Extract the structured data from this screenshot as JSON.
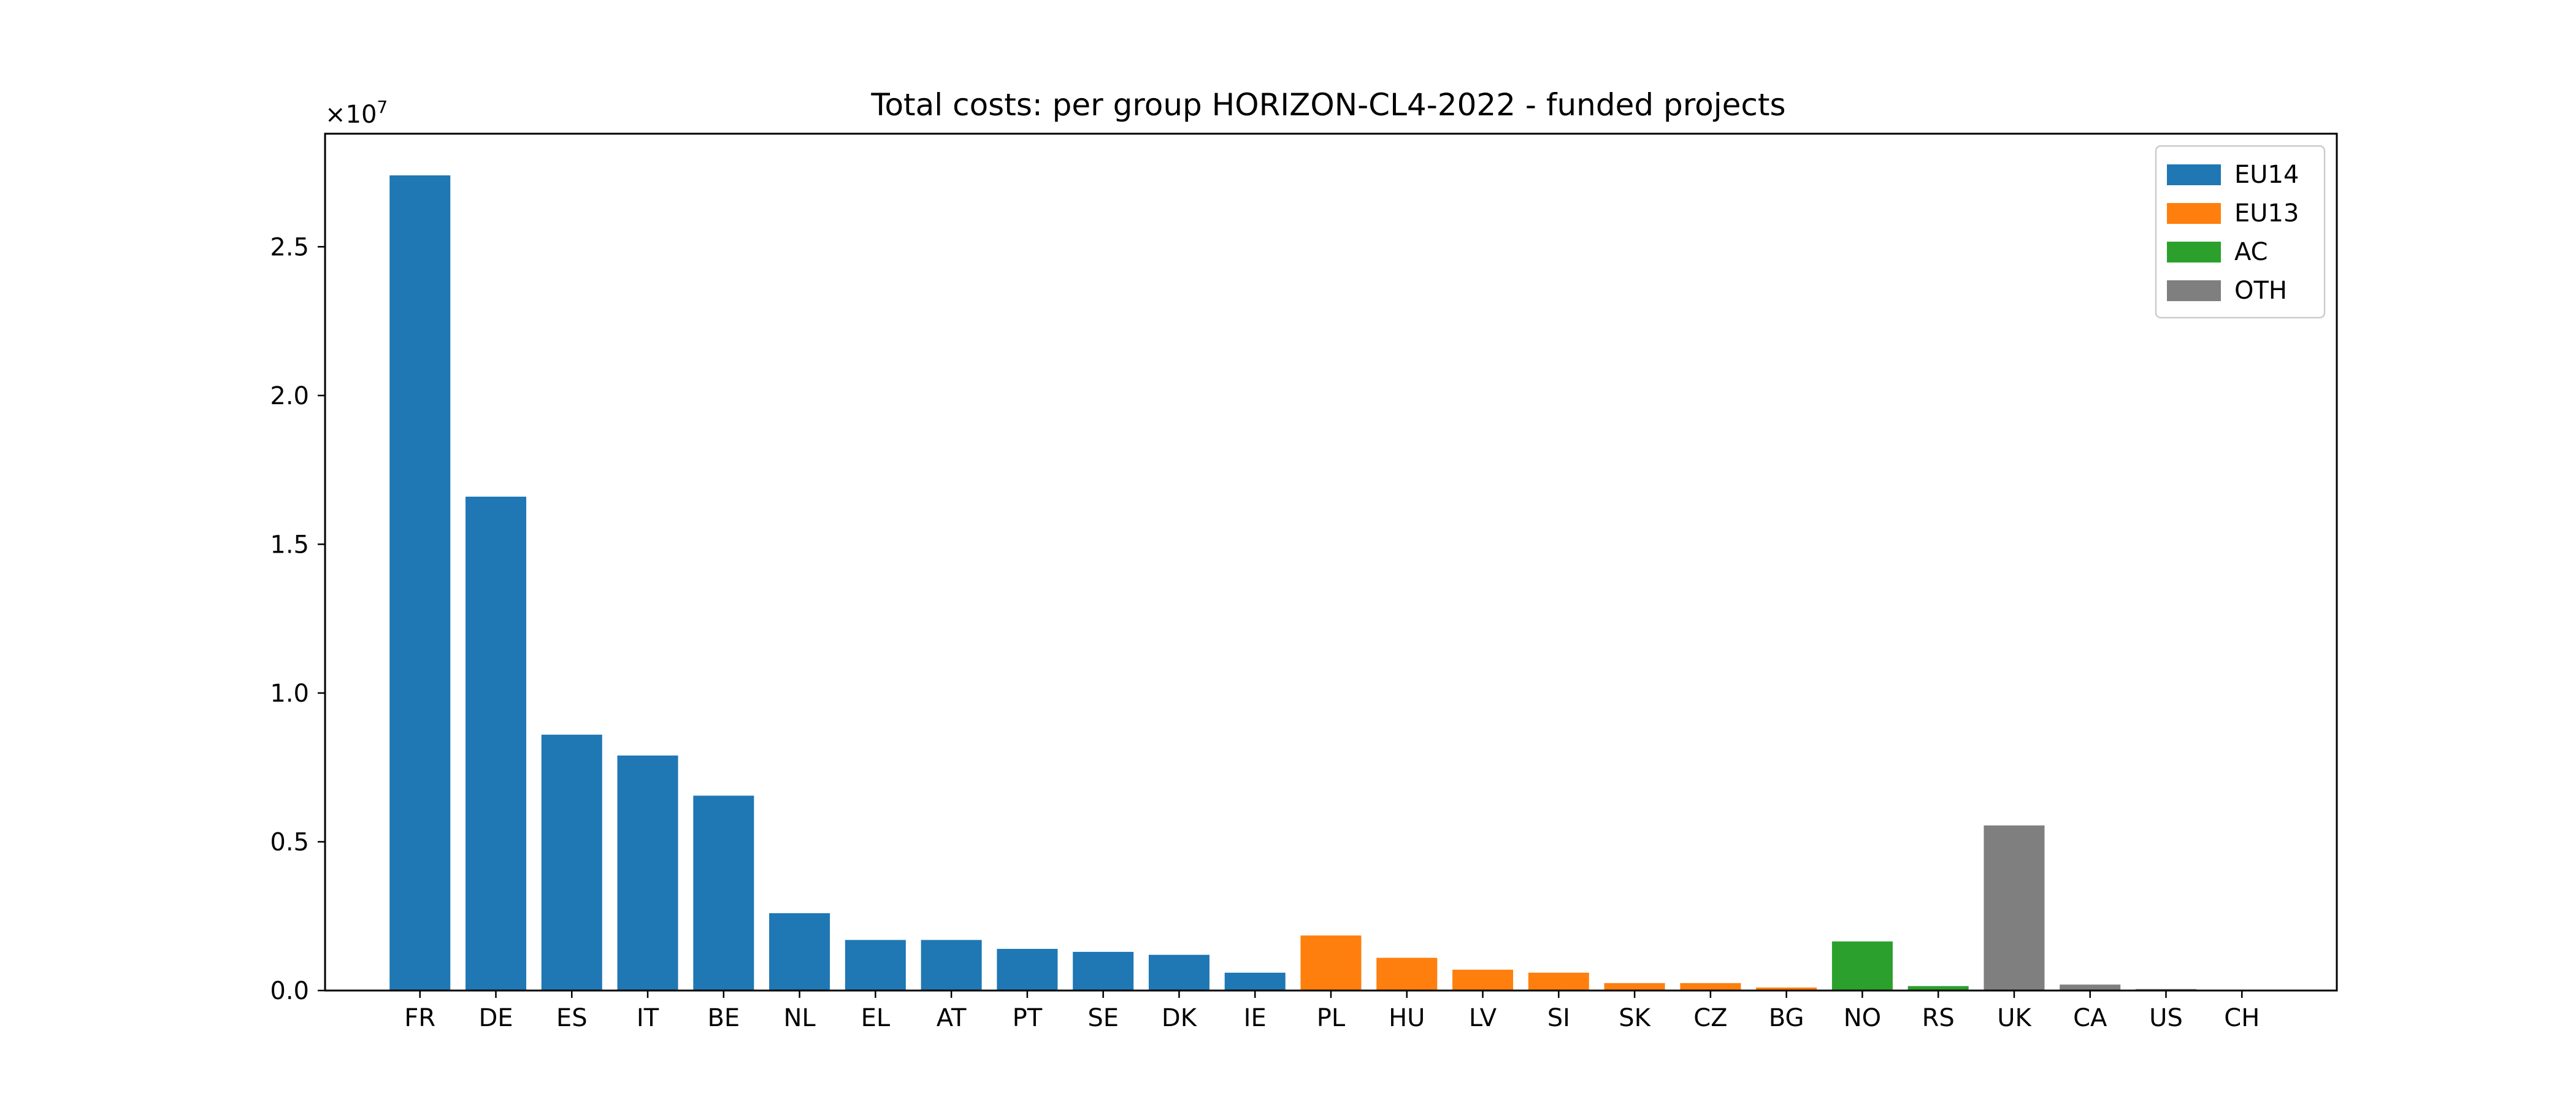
{
  "chart_data": {
    "type": "bar",
    "title": "Total costs: per group HORIZON-CL4-2022 - funded projects",
    "xlabel": "",
    "ylabel": "",
    "y_offset_text": "×10",
    "y_offset_exponent": "7",
    "ylim": [
      0,
      28800000
    ],
    "yticks": [
      0,
      5000000,
      10000000,
      15000000,
      20000000,
      25000000
    ],
    "ytick_labels": [
      "0.0",
      "0.5",
      "1.0",
      "1.5",
      "2.0",
      "2.5"
    ],
    "grid": false,
    "legend_position": "top-right",
    "groups": [
      {
        "name": "EU14",
        "color": "#1f77b4"
      },
      {
        "name": "EU13",
        "color": "#ff7f0e"
      },
      {
        "name": "AC",
        "color": "#2ca02c"
      },
      {
        "name": "OTH",
        "color": "#7f7f7f"
      }
    ],
    "categories": [
      "FR",
      "DE",
      "ES",
      "IT",
      "BE",
      "NL",
      "EL",
      "AT",
      "PT",
      "SE",
      "DK",
      "IE",
      "PL",
      "HU",
      "LV",
      "SI",
      "SK",
      "CZ",
      "BG",
      "NO",
      "RS",
      "UK",
      "CA",
      "US",
      "CH"
    ],
    "values": [
      27400000,
      16600000,
      8600000,
      7900000,
      6550000,
      2600000,
      1700000,
      1700000,
      1400000,
      1300000,
      1200000,
      600000,
      1850000,
      1100000,
      700000,
      600000,
      250000,
      250000,
      100000,
      1650000,
      150000,
      5550000,
      200000,
      50000,
      20000
    ],
    "bar_groups": [
      "EU14",
      "EU14",
      "EU14",
      "EU14",
      "EU14",
      "EU14",
      "EU14",
      "EU14",
      "EU14",
      "EU14",
      "EU14",
      "EU14",
      "EU13",
      "EU13",
      "EU13",
      "EU13",
      "EU13",
      "EU13",
      "EU13",
      "AC",
      "AC",
      "OTH",
      "OTH",
      "OTH",
      "OTH"
    ]
  }
}
